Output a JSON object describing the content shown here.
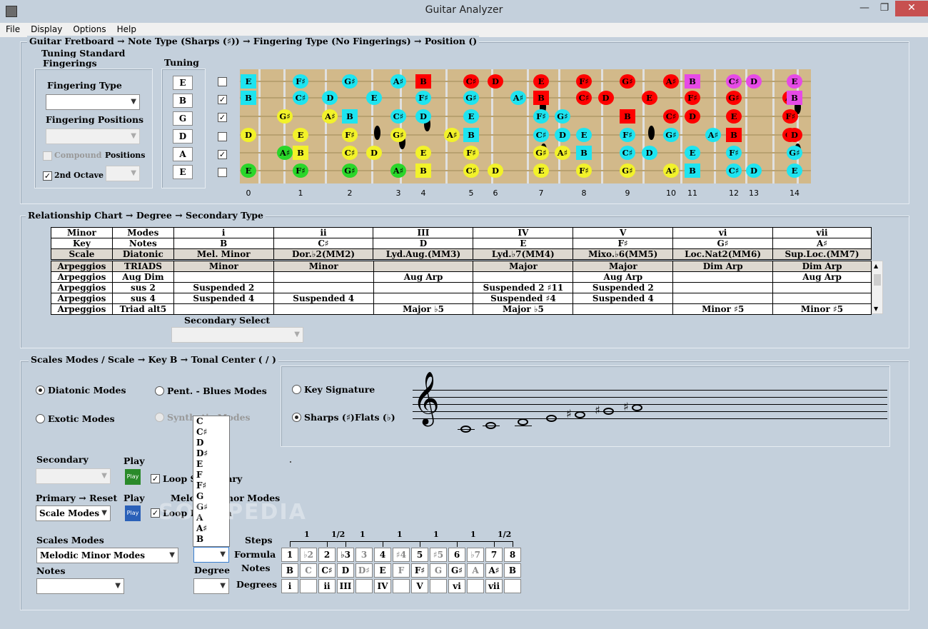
{
  "window": {
    "title": "Guitar Analyzer",
    "minimize": "—",
    "maximize": "❐",
    "close": "✕"
  },
  "menu": [
    "File",
    "Display",
    "Options",
    "Help"
  ],
  "breadcrumb": {
    "a": "Guitar Fretboard",
    "b": "Note Type (Sharps (♯))",
    "c": "Fingering Type (No Fingerings)",
    "d": "Position ()",
    "arrow": "→"
  },
  "tuning_standard": "Tuning Standard",
  "fingerings_label": "Fingerings",
  "fingering_type_label": "Fingering Type",
  "fingering_positions_label": "Fingering Positions",
  "compound_label": "Compound",
  "positions_label": "Positions",
  "second_octave_label": "2nd Octave",
  "tuning_label": "Tuning",
  "tuning": [
    "E",
    "B",
    "G",
    "D",
    "A",
    "E"
  ],
  "string_checks": [
    "",
    "✓",
    "✓",
    "",
    "✓",
    ""
  ],
  "fret_numbers": [
    "0",
    "1",
    "2",
    "3",
    "4",
    "5",
    "6",
    "7",
    "8",
    "9",
    "10",
    "11",
    "12",
    "13",
    "14"
  ],
  "fret_notes": [
    {
      "t": "E",
      "c": "cyan",
      "s": 0,
      "f": 0,
      "sq": true
    },
    {
      "t": "F♯",
      "c": "cyan",
      "s": 0,
      "f": 1
    },
    {
      "t": "G♯",
      "c": "cyan",
      "s": 0,
      "f": 2
    },
    {
      "t": "A♯",
      "c": "cyan",
      "s": 0,
      "f": 3
    },
    {
      "t": "B",
      "c": "red",
      "s": 0,
      "f": 4,
      "sq": true
    },
    {
      "t": "C♯",
      "c": "red",
      "s": 0,
      "f": 5
    },
    {
      "t": "D",
      "c": "red",
      "s": 0,
      "f": 6
    },
    {
      "t": "E",
      "c": "red",
      "s": 0,
      "f": 7
    },
    {
      "t": "F♯",
      "c": "red",
      "s": 0,
      "f": 8
    },
    {
      "t": "G♯",
      "c": "red",
      "s": 0,
      "f": 9
    },
    {
      "t": "A♯",
      "c": "red",
      "s": 0,
      "f": 10
    },
    {
      "t": "B",
      "c": "mag",
      "s": 0,
      "f": 11,
      "sq": true
    },
    {
      "t": "C♯",
      "c": "mag",
      "s": 0,
      "f": 12
    },
    {
      "t": "D",
      "c": "mag",
      "s": 0,
      "f": 13
    },
    {
      "t": "E",
      "c": "mag",
      "s": 0,
      "f": 14
    },
    {
      "t": "B",
      "c": "cyan",
      "s": 1,
      "f": 0,
      "sq": true
    },
    {
      "t": "C♯",
      "c": "cyan",
      "s": 1,
      "f": 1
    },
    {
      "t": "D",
      "c": "cyan",
      "s": 1,
      "f": 1.6
    },
    {
      "t": "E",
      "c": "cyan",
      "s": 1,
      "f": 2.5
    },
    {
      "t": "F♯",
      "c": "cyan",
      "s": 1,
      "f": 4
    },
    {
      "t": "G♯",
      "c": "cyan",
      "s": 1,
      "f": 5
    },
    {
      "t": "A♯",
      "c": "cyan",
      "s": 1,
      "f": 6.5
    },
    {
      "t": "B",
      "c": "red",
      "s": 1,
      "f": 7,
      "sq": true
    },
    {
      "t": "C♯",
      "c": "red",
      "s": 1,
      "f": 8
    },
    {
      "t": "D",
      "c": "red",
      "s": 1,
      "f": 8.5
    },
    {
      "t": "E",
      "c": "red",
      "s": 1,
      "f": 9.5
    },
    {
      "t": "F♯",
      "c": "red",
      "s": 1,
      "f": 11
    },
    {
      "t": "G♯",
      "c": "red",
      "s": 1,
      "f": 12
    },
    {
      "t": "A♯",
      "c": "red",
      "s": 1,
      "f": 13.9
    },
    {
      "t": "B",
      "c": "mag",
      "s": 1,
      "f": 14,
      "sq": true
    },
    {
      "t": "G♯",
      "c": "yellow",
      "s": 2,
      "f": 0.7
    },
    {
      "t": "A♯",
      "c": "yellow",
      "s": 2,
      "f": 1.6
    },
    {
      "t": "B",
      "c": "cyan",
      "s": 2,
      "f": 2,
      "sq": true
    },
    {
      "t": "C♯",
      "c": "cyan",
      "s": 2,
      "f": 3
    },
    {
      "t": "D",
      "c": "cyan",
      "s": 2,
      "f": 4
    },
    {
      "t": "E",
      "c": "cyan",
      "s": 2,
      "f": 5
    },
    {
      "t": "F♯",
      "c": "cyan",
      "s": 2,
      "f": 7
    },
    {
      "t": "G♯",
      "c": "cyan",
      "s": 2,
      "f": 7.5
    },
    {
      "t": "A♯",
      "c": "cyan",
      "s": 2,
      "f": 9
    },
    {
      "t": "B",
      "c": "red",
      "s": 2,
      "f": 9,
      "sq": true
    },
    {
      "t": "C♯",
      "c": "red",
      "s": 2,
      "f": 10
    },
    {
      "t": "D",
      "c": "red",
      "s": 2,
      "f": 11
    },
    {
      "t": "E",
      "c": "red",
      "s": 2,
      "f": 12
    },
    {
      "t": "F♯",
      "c": "red",
      "s": 2,
      "f": 13.9
    },
    {
      "t": "D",
      "c": "yellow",
      "s": 3,
      "f": 0
    },
    {
      "t": "E",
      "c": "yellow",
      "s": 3,
      "f": 1
    },
    {
      "t": "F♯",
      "c": "yellow",
      "s": 3,
      "f": 2
    },
    {
      "t": "G♯",
      "c": "yellow",
      "s": 3,
      "f": 3
    },
    {
      "t": "A♯",
      "c": "yellow",
      "s": 3,
      "f": 4.6
    },
    {
      "t": "B",
      "c": "cyan",
      "s": 3,
      "f": 5,
      "sq": true
    },
    {
      "t": "C♯",
      "c": "cyan",
      "s": 3,
      "f": 7
    },
    {
      "t": "D",
      "c": "cyan",
      "s": 3,
      "f": 7.5
    },
    {
      "t": "E",
      "c": "cyan",
      "s": 3,
      "f": 8
    },
    {
      "t": "F♯",
      "c": "cyan",
      "s": 3,
      "f": 9
    },
    {
      "t": "G♯",
      "c": "cyan",
      "s": 3,
      "f": 10
    },
    {
      "t": "A♯",
      "c": "cyan",
      "s": 3,
      "f": 11.5
    },
    {
      "t": "B",
      "c": "red",
      "s": 3,
      "f": 12,
      "sq": true
    },
    {
      "t": "C♯",
      "c": "red",
      "s": 3,
      "f": 13.9
    },
    {
      "t": "D",
      "c": "red",
      "s": 3,
      "f": 14
    },
    {
      "t": "A♯",
      "c": "green",
      "s": 4,
      "f": 0.7
    },
    {
      "t": "B",
      "c": "yellow",
      "s": 4,
      "f": 1,
      "sq": true
    },
    {
      "t": "C♯",
      "c": "yellow",
      "s": 4,
      "f": 2
    },
    {
      "t": "D",
      "c": "yellow",
      "s": 4,
      "f": 2.5
    },
    {
      "t": "E",
      "c": "yellow",
      "s": 4,
      "f": 4
    },
    {
      "t": "F♯",
      "c": "yellow",
      "s": 4,
      "f": 5
    },
    {
      "t": "G♯",
      "c": "yellow",
      "s": 4,
      "f": 7
    },
    {
      "t": "A♯",
      "c": "yellow",
      "s": 4,
      "f": 7.5
    },
    {
      "t": "B",
      "c": "cyan",
      "s": 4,
      "f": 8,
      "sq": true
    },
    {
      "t": "C♯",
      "c": "cyan",
      "s": 4,
      "f": 9
    },
    {
      "t": "D",
      "c": "cyan",
      "s": 4,
      "f": 9.5
    },
    {
      "t": "E",
      "c": "cyan",
      "s": 4,
      "f": 11
    },
    {
      "t": "F♯",
      "c": "cyan",
      "s": 4,
      "f": 12
    },
    {
      "t": "G♯",
      "c": "cyan",
      "s": 4,
      "f": 14
    },
    {
      "t": "E",
      "c": "green",
      "s": 5,
      "f": 0
    },
    {
      "t": "F♯",
      "c": "green",
      "s": 5,
      "f": 1
    },
    {
      "t": "G♯",
      "c": "green",
      "s": 5,
      "f": 2
    },
    {
      "t": "A♯",
      "c": "green",
      "s": 5,
      "f": 3
    },
    {
      "t": "B",
      "c": "yellow",
      "s": 5,
      "f": 4,
      "sq": true
    },
    {
      "t": "C♯",
      "c": "yellow",
      "s": 5,
      "f": 5
    },
    {
      "t": "D",
      "c": "yellow",
      "s": 5,
      "f": 6
    },
    {
      "t": "E",
      "c": "yellow",
      "s": 5,
      "f": 7
    },
    {
      "t": "F♯",
      "c": "yellow",
      "s": 5,
      "f": 8
    },
    {
      "t": "G♯",
      "c": "yellow",
      "s": 5,
      "f": 9
    },
    {
      "t": "A♯",
      "c": "yellow",
      "s": 5,
      "f": 10
    },
    {
      "t": "B",
      "c": "cyan",
      "s": 5,
      "f": 11,
      "sq": true
    },
    {
      "t": "C♯",
      "c": "cyan",
      "s": 5,
      "f": 12
    },
    {
      "t": "D",
      "c": "cyan",
      "s": 5,
      "f": 13
    },
    {
      "t": "E",
      "c": "cyan",
      "s": 5,
      "f": 14
    }
  ],
  "relationship": {
    "title": "Relationship Chart",
    "b": "Degree",
    "c": "Secondary Type",
    "secondary_select": "Secondary Select"
  },
  "rel_rows": [
    [
      "Minor",
      "Modes",
      "i",
      "ii",
      "III",
      "IV",
      "V",
      "vi",
      "vii"
    ],
    [
      "Key",
      "Notes",
      "B",
      "C♯",
      "D",
      "E",
      "F♯",
      "G♯",
      "A♯"
    ],
    [
      "Scale",
      "Diatonic",
      "Mel. Minor",
      "Dor.♭2(MM2)",
      "Lyd.Aug.(MM3)",
      "Lyd.♭7(MM4)",
      "Mixo.♭6(MM5)",
      "Loc.Nat2(MM6)",
      "Sup.Loc.(MM7)"
    ]
  ],
  "rel_body": [
    [
      "Arpeggios",
      "TRIADS",
      "Minor",
      "Minor",
      "",
      "Major",
      "Major",
      "Dim Arp",
      "Dim Arp"
    ],
    [
      "Arpeggios",
      "Aug Dim",
      "",
      "",
      "Aug Arp",
      "",
      "Aug Arp",
      "",
      "Aug Arp"
    ],
    [
      "Arpeggios",
      "sus 2",
      "Suspended 2",
      "",
      "",
      "Suspended 2 ♯11",
      "Suspended 2",
      "",
      ""
    ],
    [
      "Arpeggios",
      "sus 4",
      "Suspended 4",
      "Suspended 4",
      "",
      "Suspended ♯4",
      "Suspended 4",
      "",
      ""
    ],
    [
      "Arpeggios",
      "Triad alt5",
      "",
      "",
      "Major ♭5",
      "Major ♭5",
      "",
      "Minor ♯5",
      "Minor ♯5"
    ]
  ],
  "scales": {
    "title": "Scales Modes / Scale",
    "key_label": "Key",
    "key": "B",
    "tonal": "Tonal Center",
    "tonal_val": "(  /  )",
    "diatonic": "Diatonic Modes",
    "pent": "Pent. - Blues Modes",
    "exotic": "Exotic Modes",
    "synth": "Synthetic Modes",
    "key_sig": "Key Signature",
    "sharps": "Sharps (♯)",
    "flats": "Flats (♭)",
    "secondary": "Secondary",
    "play": "Play",
    "loop_sec": "Loop Secondary",
    "primary": "Primary",
    "reset": "Reset",
    "scale_modes_combo": "Scale Modes",
    "melodic": "Melodic Minor Modes",
    "loop_formula": "Loop Formula",
    "scales_modes_label": "Scales Modes",
    "notes_label": "Notes",
    "degree_label": "Degree",
    "play_btn": "Play"
  },
  "dropdown_options": [
    "C",
    "C♯",
    "D",
    "D♯",
    "E",
    "F",
    "F♯",
    "G",
    "G♯",
    "A",
    "A♯",
    "B"
  ],
  "steps_label": "Steps",
  "formula_label": "Formula",
  "notes_row_label": "Notes",
  "degrees_label": "Degrees",
  "steps": [
    "1",
    "1/2",
    "1",
    "1",
    "1",
    "1",
    "1/2"
  ],
  "formula": [
    [
      "1",
      0
    ],
    [
      "♭2",
      1
    ],
    [
      "2",
      0
    ],
    [
      "♭3",
      0
    ],
    [
      "3",
      1
    ],
    [
      "4",
      0
    ],
    [
      "♯4",
      1
    ],
    [
      "5",
      0
    ],
    [
      "♯5",
      1
    ],
    [
      "6",
      0
    ],
    [
      "♭7",
      1
    ],
    [
      "7",
      0
    ],
    [
      "8",
      0
    ]
  ],
  "notes": [
    [
      "B",
      0
    ],
    [
      "C",
      1
    ],
    [
      "C♯",
      0
    ],
    [
      "D",
      0
    ],
    [
      "D♯",
      1
    ],
    [
      "E",
      0
    ],
    [
      "F",
      1
    ],
    [
      "F♯",
      0
    ],
    [
      "G",
      1
    ],
    [
      "G♯",
      0
    ],
    [
      "A",
      1
    ],
    [
      "A♯",
      0
    ],
    [
      "B",
      0
    ]
  ],
  "degrees": [
    "i",
    "",
    "ii",
    "III",
    "",
    "IV",
    "",
    "V",
    "",
    "vi",
    "",
    "vii",
    ""
  ],
  "staff_notes": [
    "",
    "",
    "",
    "",
    "♯",
    "♯",
    "♯"
  ],
  "watermark": "SOFTPEDIA"
}
